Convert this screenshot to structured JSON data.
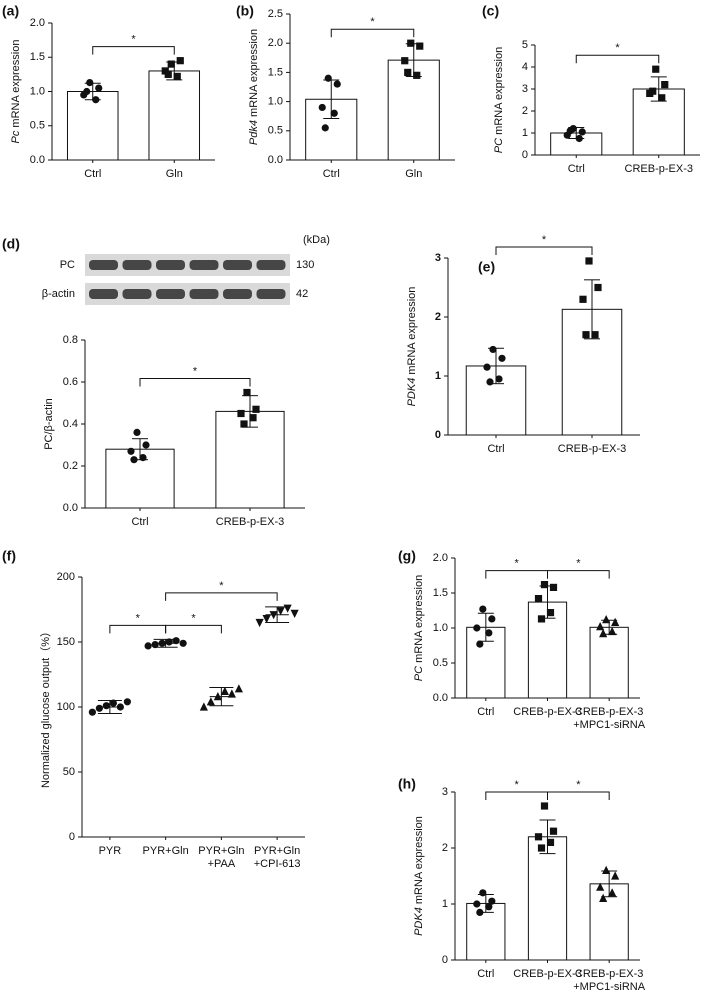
{
  "chart_data": [
    {
      "type": "bar",
      "panel": "(a)",
      "ylabel_italic": "Pc",
      "ylabel": " mRNA expression",
      "categories": [
        [
          "Ctrl"
        ],
        [
          "Gln"
        ]
      ],
      "values": [
        1.0,
        1.3
      ],
      "errors": [
        0.12,
        0.13
      ],
      "points": [
        [
          1.13,
          1.05,
          0.95,
          0.88,
          1.0
        ],
        [
          1.4,
          1.45,
          1.3,
          1.22,
          1.25
        ]
      ],
      "markers": [
        "circle",
        "square"
      ],
      "ylim": [
        0,
        2
      ],
      "yticks": [
        {
          "value": 0,
          "label": "0.0"
        },
        0.5,
        {
          "value": 1,
          "label": "1.0"
        },
        1.5,
        {
          "value": 2,
          "label": "2.0"
        }
      ],
      "brackets": [
        {
          "from": 0,
          "to": 1,
          "label": "*"
        }
      ]
    },
    {
      "type": "bar",
      "panel": "(b)",
      "ylabel_italic": "Pdk4",
      "ylabel": " mRNA expression",
      "categories": [
        [
          "Ctrl"
        ],
        [
          "Gln"
        ]
      ],
      "values": [
        1.04,
        1.71
      ],
      "errors": [
        0.33,
        0.28
      ],
      "points": [
        [
          1.4,
          1.3,
          0.9,
          0.8,
          0.55
        ],
        [
          2.0,
          1.95,
          1.7,
          1.45,
          1.5
        ]
      ],
      "markers": [
        "circle",
        "square"
      ],
      "ylim": [
        0,
        2.5
      ],
      "yticks": [
        {
          "value": 0,
          "label": "0.0"
        },
        0.5,
        {
          "value": 1,
          "label": "1.0"
        },
        1.5,
        {
          "value": 2,
          "label": "2.0"
        },
        2.5
      ],
      "brackets": [
        {
          "from": 0,
          "to": 1,
          "label": "*"
        }
      ]
    },
    {
      "type": "bar",
      "panel": "(c)",
      "ylabel_italic": "PC",
      "ylabel": " mRNA expression",
      "categories": [
        [
          "Ctrl"
        ],
        [
          "CREB-p-EX-3"
        ]
      ],
      "values": [
        1.0,
        3.0
      ],
      "errors": [
        0.25,
        0.55
      ],
      "points": [
        [
          1.2,
          1.05,
          0.9,
          0.75,
          1.1
        ],
        [
          3.9,
          3.2,
          2.8,
          2.6,
          2.9
        ]
      ],
      "markers": [
        "circle",
        "square"
      ],
      "ylim": [
        0,
        5
      ],
      "yticks": [
        0,
        1,
        2,
        3,
        4,
        5
      ],
      "brackets": [
        {
          "from": 0,
          "to": 1,
          "label": "*"
        }
      ]
    },
    {
      "type": "bar",
      "panel": "(d)",
      "ylabel": "PC/β-actin",
      "blot": {
        "unit": "(kDa)",
        "rows": [
          {
            "name": "PC",
            "kda": 130
          },
          {
            "name": "β-actin",
            "kda": 42
          }
        ]
      },
      "categories": [
        [
          "Ctrl"
        ],
        [
          "CREB-p-EX-3"
        ]
      ],
      "values": [
        0.28,
        0.46
      ],
      "errors": [
        0.05,
        0.075
      ],
      "points": [
        [
          0.36,
          0.3,
          0.27,
          0.24,
          0.23
        ],
        [
          0.55,
          0.47,
          0.45,
          0.43,
          0.4
        ]
      ],
      "markers": [
        "circle",
        "square"
      ],
      "ylim": [
        0,
        0.8
      ],
      "yticks": [
        {
          "value": 0,
          "label": "0.0"
        },
        0.2,
        0.4,
        0.6,
        0.8
      ],
      "brackets": [
        {
          "from": 0,
          "to": 1,
          "label": "*"
        }
      ]
    },
    {
      "type": "bar",
      "panel": "(e)",
      "ylabel_italic": "PDK4",
      "ylabel": " mRNA expression",
      "categories": [
        [
          "Ctrl"
        ],
        [
          "CREB-p-EX-3"
        ]
      ],
      "values": [
        1.17,
        2.13
      ],
      "errors": [
        0.3,
        0.5
      ],
      "points": [
        [
          1.45,
          1.3,
          1.15,
          0.95,
          0.9
        ],
        [
          2.95,
          2.5,
          2.3,
          1.7,
          1.7
        ]
      ],
      "markers": [
        "circle",
        "square"
      ],
      "ylim": [
        0,
        3
      ],
      "yticks": [
        0,
        1,
        2,
        3
      ],
      "tick_weight": "bold",
      "brackets": [
        {
          "from": 0,
          "to": 1,
          "label": "*"
        }
      ]
    },
    {
      "type": "dot",
      "panel": "(f)",
      "ylabel": "Normalized glucose output（%）",
      "categories": [
        [
          "PYR"
        ],
        [
          "PYR+Gln"
        ],
        [
          "PYR+Gln",
          "+PAA"
        ],
        [
          "PYR+Gln",
          "+CPI-613"
        ]
      ],
      "values": [
        100,
        149,
        108,
        171
      ],
      "errors": [
        5,
        3,
        7,
        6
      ],
      "points": [
        [
          96,
          99,
          101,
          103,
          100,
          104
        ],
        [
          147,
          148,
          149,
          150,
          151,
          149
        ],
        [
          100,
          104,
          108,
          112,
          110,
          114
        ],
        [
          165,
          168,
          171,
          174,
          176,
          172
        ]
      ],
      "markers": [
        "circle",
        "circle",
        "triangle",
        "triangle-down"
      ],
      "ylim": [
        0,
        200
      ],
      "yticks": [
        0,
        50,
        100,
        150,
        200
      ],
      "brackets": [
        {
          "from": 0,
          "to": 1,
          "label": "*"
        },
        {
          "from": 1,
          "to": 2,
          "label": "*"
        },
        {
          "from": 1,
          "to": 3,
          "label": "*"
        }
      ]
    },
    {
      "type": "bar",
      "panel": "(g)",
      "ylabel_italic": "PC",
      "ylabel": " mRNA expression",
      "categories": [
        [
          "Ctrl"
        ],
        [
          "CREB-p-EX-3"
        ],
        [
          "CREB-p-EX-3",
          "+MPC1-siRNA"
        ]
      ],
      "values": [
        1.01,
        1.37,
        1.01
      ],
      "errors": [
        0.2,
        0.23,
        0.1
      ],
      "points": [
        [
          1.27,
          1.13,
          1.0,
          0.93,
          0.77
        ],
        [
          1.62,
          1.58,
          1.42,
          1.22,
          1.13
        ],
        [
          1.12,
          1.08,
          1.02,
          0.95,
          0.92
        ]
      ],
      "markers": [
        "circle",
        "square",
        "triangle"
      ],
      "ylim": [
        0,
        2
      ],
      "yticks": [
        {
          "value": 0,
          "label": "0.0"
        },
        0.5,
        {
          "value": 1,
          "label": "1.0"
        },
        1.5,
        {
          "value": 2,
          "label": "2.0"
        }
      ],
      "brackets": [
        {
          "from": 0,
          "to": 1,
          "label": "*"
        },
        {
          "from": 1,
          "to": 2,
          "label": "*"
        }
      ]
    },
    {
      "type": "bar",
      "panel": "(h)",
      "ylabel_italic": "PDK4",
      "ylabel": "  mRNA expression",
      "categories": [
        [
          "Ctrl"
        ],
        [
          "CREB-p-EX-3"
        ],
        [
          "CREB-p-EX-3",
          "+MPC1-siRNA"
        ]
      ],
      "values": [
        1.01,
        2.2,
        1.36
      ],
      "errors": [
        0.16,
        0.3,
        0.23
      ],
      "points": [
        [
          1.2,
          1.05,
          1.0,
          0.95,
          0.85
        ],
        [
          2.75,
          2.3,
          2.2,
          2.1,
          2.0
        ],
        [
          1.6,
          1.5,
          1.3,
          1.2,
          1.1
        ]
      ],
      "markers": [
        "circle",
        "square",
        "triangle"
      ],
      "ylim": [
        0,
        3
      ],
      "yticks": [
        0,
        1,
        2,
        3
      ],
      "brackets": [
        {
          "from": 0,
          "to": 1,
          "label": "*"
        },
        {
          "from": 1,
          "to": 2,
          "label": "*"
        }
      ]
    }
  ]
}
